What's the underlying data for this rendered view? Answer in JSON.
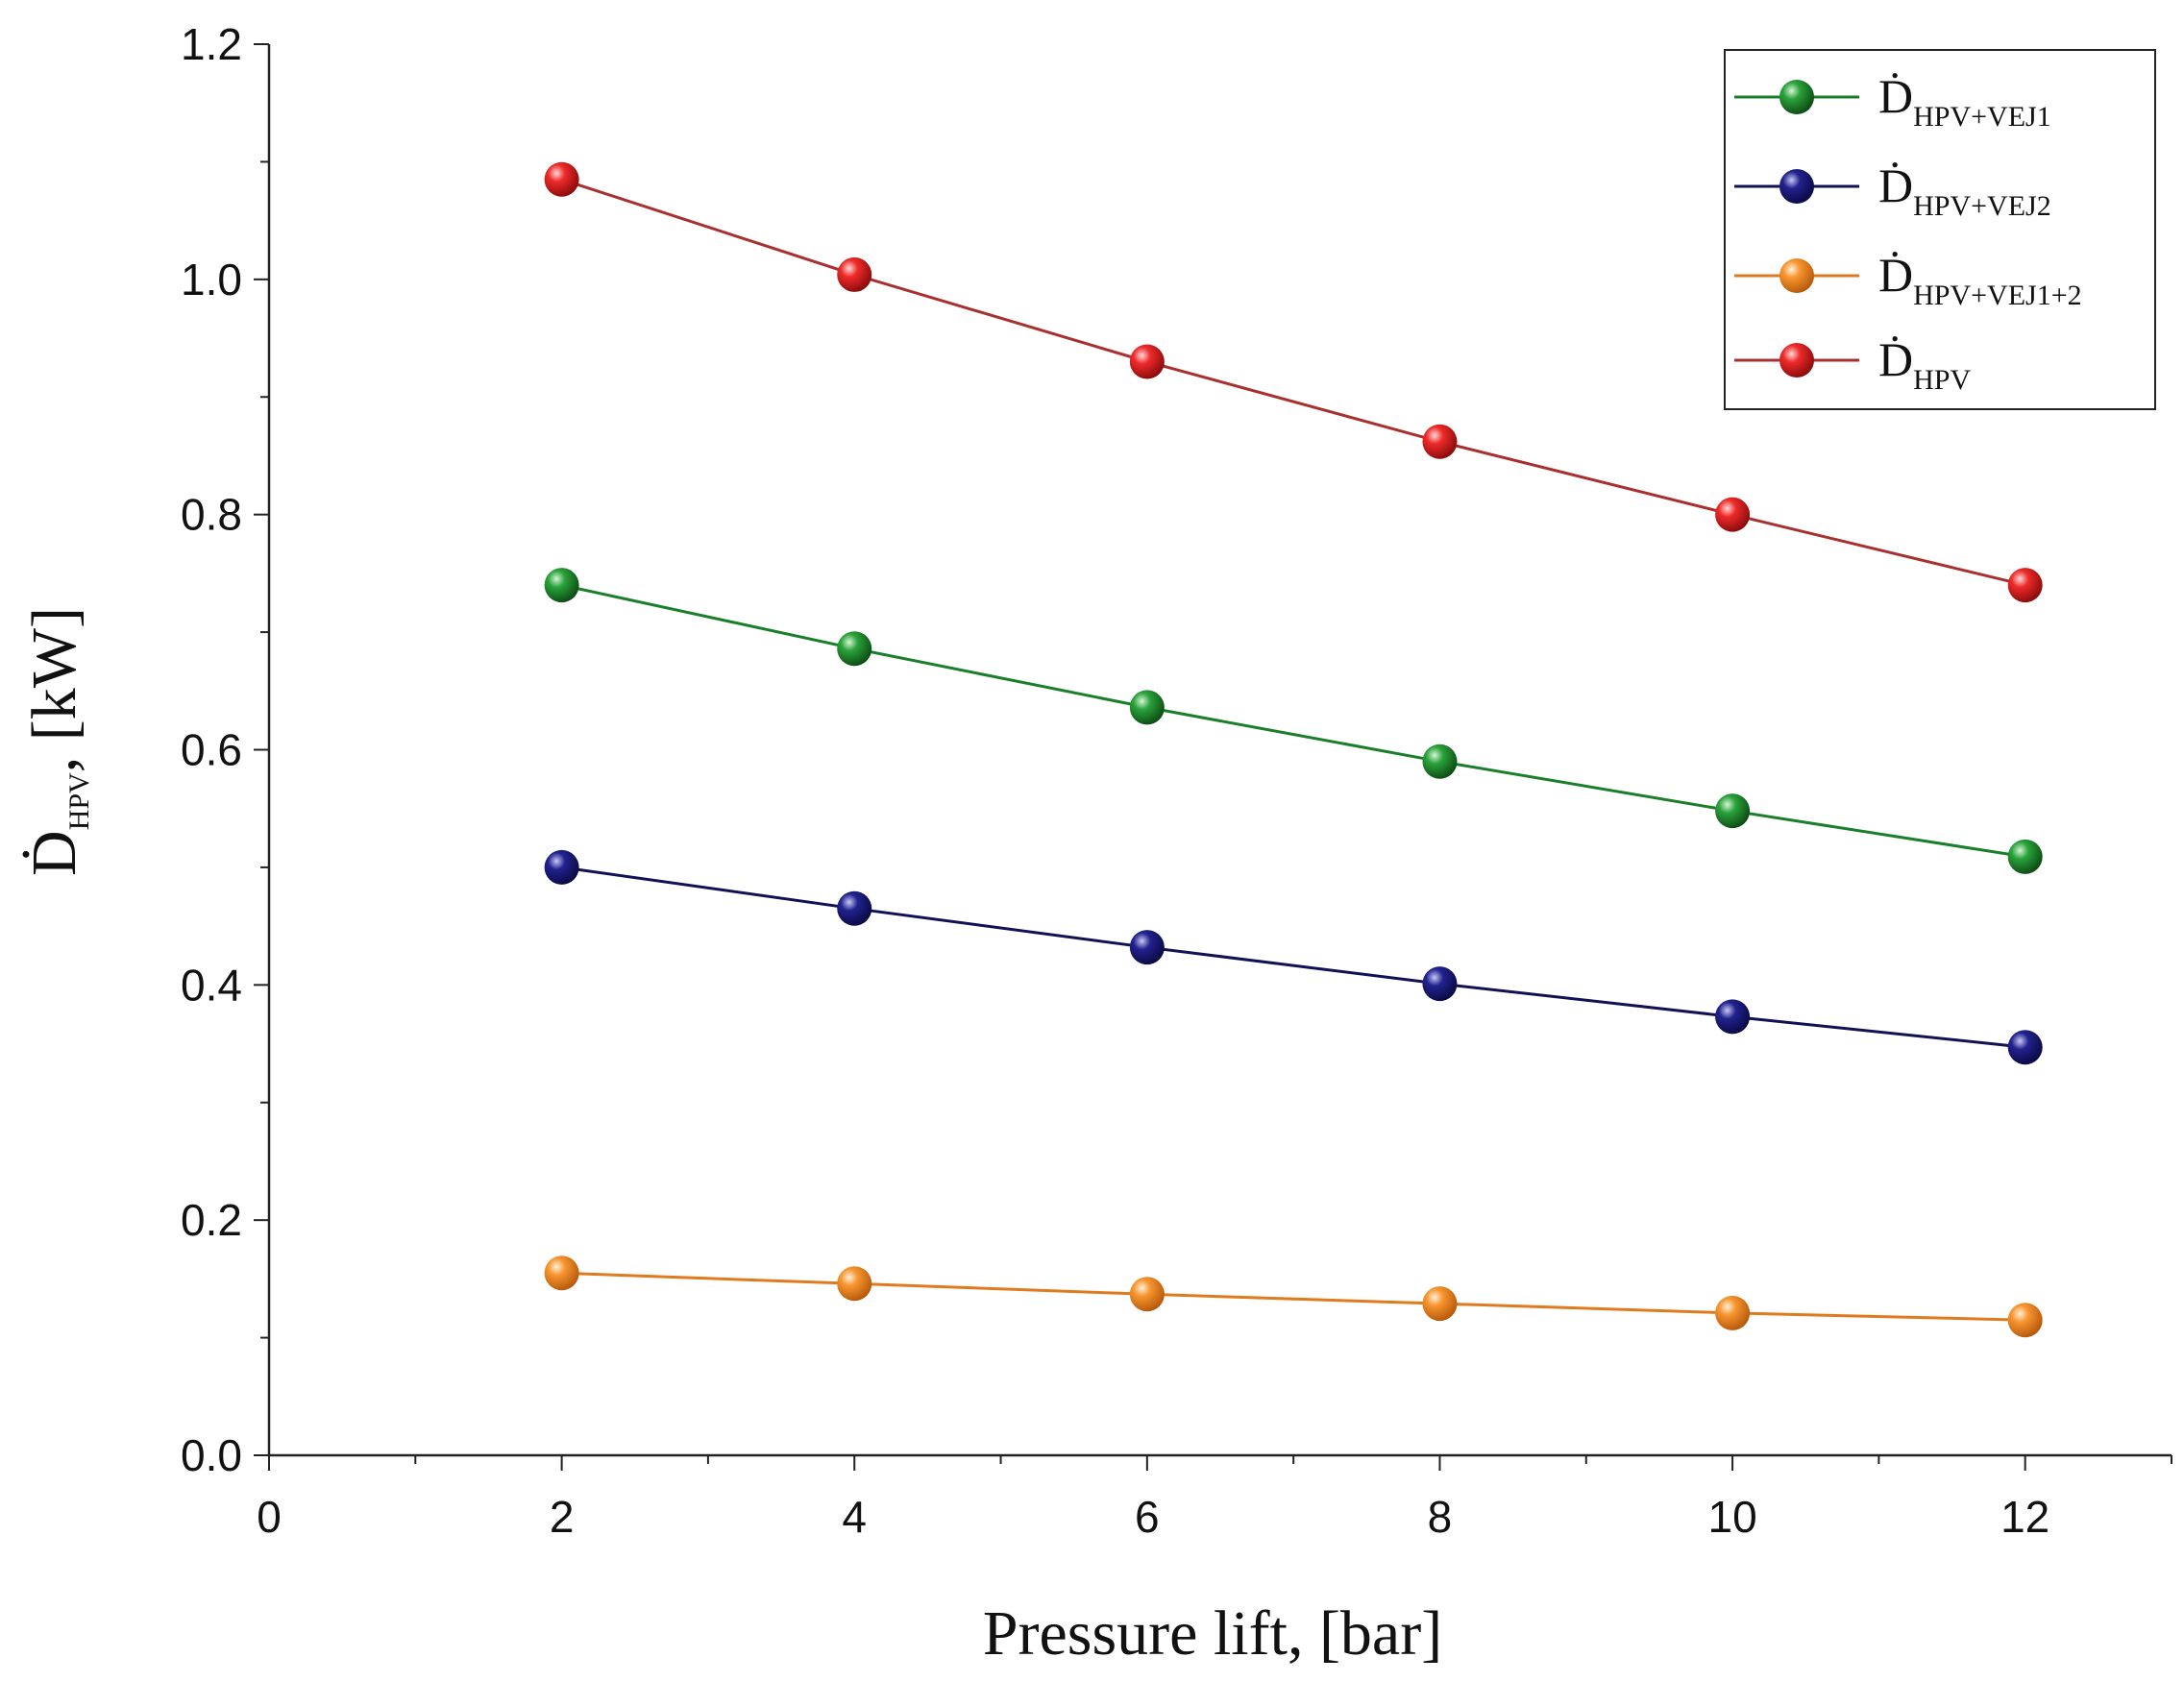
{
  "chart_data": {
    "type": "line",
    "title": "",
    "xlabel": "Pressure lift, [bar]",
    "ylabel": {
      "main": "Ḋ",
      "sub": "HPV",
      "suffix": ", [kW]"
    },
    "xlim": [
      0,
      13
    ],
    "ylim": [
      0,
      1.2
    ],
    "xticks": [
      0,
      2,
      4,
      6,
      8,
      10,
      12
    ],
    "xtick_labels": [
      "0",
      "2",
      "4",
      "6",
      "8",
      "10",
      "12"
    ],
    "yticks": [
      0.0,
      0.2,
      0.4,
      0.6,
      0.8,
      1.0,
      1.2
    ],
    "ytick_labels": [
      "0.0",
      "0.2",
      "0.4",
      "0.6",
      "0.8",
      "1.0",
      "1.2"
    ],
    "grid": false,
    "legend_position": "top-right",
    "x": [
      2,
      4,
      6,
      8,
      10,
      12
    ],
    "series": [
      {
        "name": "Ḋ HPV+VEJ1",
        "main": "Ḋ",
        "sub": "HPV+VEJ1",
        "color": "#1a7f2a",
        "line_color": "#1a7f2a",
        "values": [
          0.74,
          0.686,
          0.636,
          0.59,
          0.548,
          0.509
        ]
      },
      {
        "name": "Ḋ HPV+VEJ2",
        "main": "Ḋ",
        "sub": "HPV+VEJ2",
        "color": "#1a1a80",
        "line_color": "#111155",
        "values": [
          0.5,
          0.465,
          0.432,
          0.401,
          0.373,
          0.347
        ]
      },
      {
        "name": "Ḋ HPV+VEJ1+2",
        "main": "Ḋ",
        "sub": "HPV+VEJ1+2",
        "color": "#f28a2e",
        "line_color": "#e07a1f",
        "values": [
          0.155,
          0.146,
          0.137,
          0.129,
          0.121,
          0.115
        ]
      },
      {
        "name": "Ḋ HPV",
        "main": "Ḋ",
        "sub": "HPV",
        "color": "#e8232a",
        "line_color": "#a8302e",
        "values": [
          1.085,
          1.004,
          0.93,
          0.862,
          0.8,
          0.74
        ]
      }
    ]
  }
}
